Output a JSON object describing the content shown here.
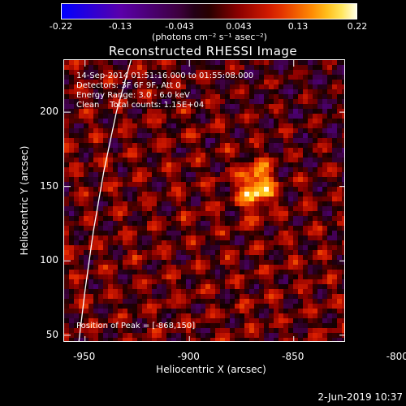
{
  "colorbar": {
    "ticks": [
      "-0.22",
      "-0.13",
      "-0.043",
      "0.043",
      "0.13",
      "0.22"
    ],
    "units": "(photons cm⁻² s⁻¹ asec⁻²)",
    "range": [
      -0.22,
      0.22
    ]
  },
  "info": {
    "line1": "14-Sep-2014 01:51:16.000 to 01:55:08.000",
    "line2": "Detectors: 3F 6F 9F, Att 0",
    "line3": "Energy Range: 3.0 - 6.0 keV",
    "line4": "Clean    Total counts: 1.15E+04",
    "peak": "Position of Peak = [-868,150]"
  },
  "timestamp": "2-Jun-2019 10:37",
  "chart_data": {
    "type": "heatmap",
    "title": "Reconstructed RHESSI Image",
    "xlabel": "Heliocentric X (arcsec)",
    "ylabel": "Heliocentric Y (arcsec)",
    "xlim": [
      -960,
      -825
    ],
    "ylim": [
      45,
      235
    ],
    "xticks": [
      "-950",
      "-900",
      "-850",
      "-800"
    ],
    "yticks": [
      "200",
      "150",
      "100",
      "50"
    ],
    "peak": {
      "x": -868,
      "y": 150,
      "value": 0.22
    },
    "colormap": "blue-purple-red-yellow-white",
    "limb_curve_x": [
      [
        -928,
        235
      ],
      [
        -935,
        200
      ],
      [
        -941,
        160
      ],
      [
        -946,
        120
      ],
      [
        -950,
        80
      ],
      [
        -953,
        45
      ]
    ]
  }
}
